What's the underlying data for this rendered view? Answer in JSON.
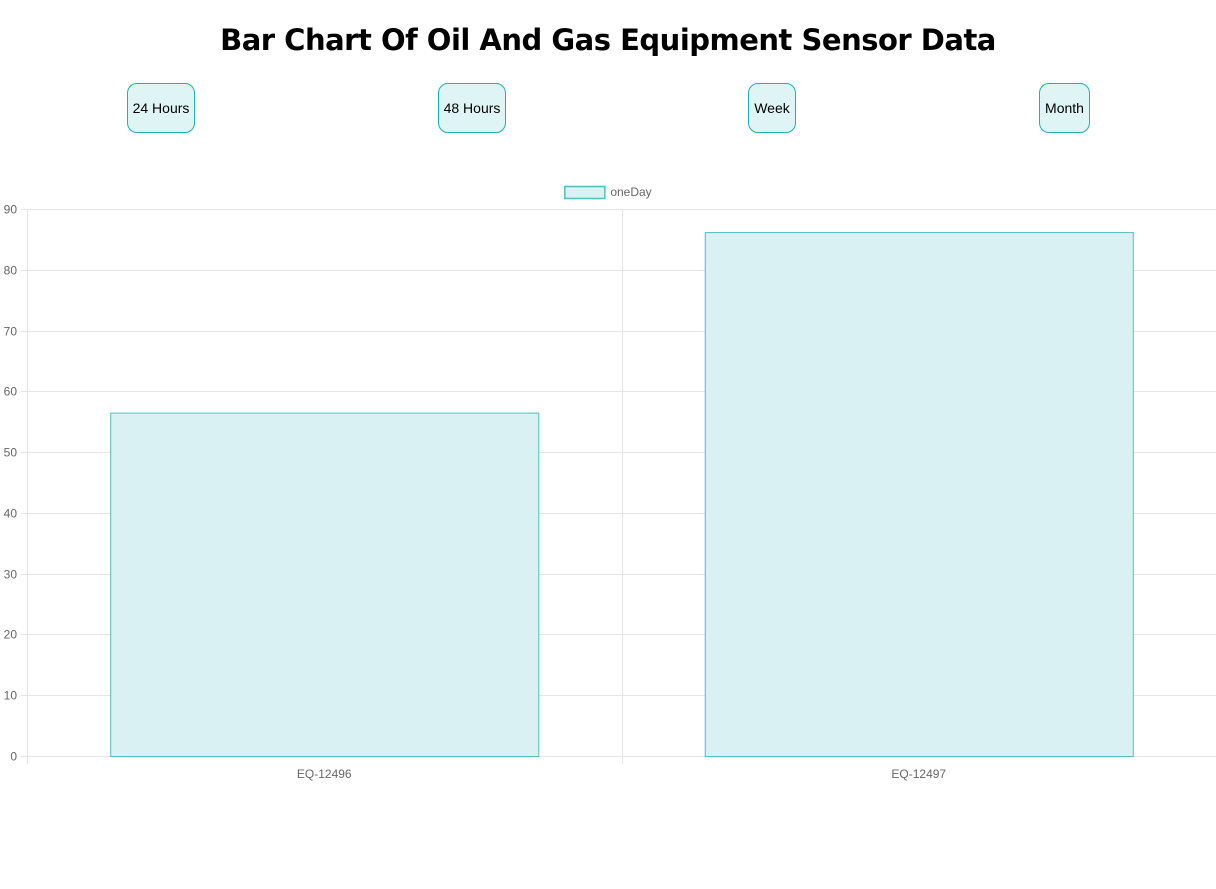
{
  "title": "Bar Chart Of Oil And Gas Equipment Sensor Data",
  "buttons": {
    "h24": "24 Hours",
    "h48": "48 Hours",
    "week": "Week",
    "month": "Month"
  },
  "colors": {
    "bar_fill": "#daf1f3",
    "bar_border": "#4cc0c0",
    "grid": "#e5e5e5",
    "tick_text": "#666666",
    "button_fill": "#dff5f5",
    "button_border": "#1fb0b7"
  },
  "chart_data": {
    "type": "bar",
    "categories": [
      "EQ-12496",
      "EQ-12497"
    ],
    "series": [
      {
        "name": "oneDay",
        "values": [
          56.5,
          86.2
        ]
      }
    ],
    "title": "",
    "xlabel": "",
    "ylabel": "",
    "ylim": [
      0,
      90
    ],
    "yticks": [
      0,
      10,
      20,
      30,
      40,
      50,
      60,
      70,
      80,
      90
    ],
    "grid": true,
    "legend_position": "top-center"
  }
}
